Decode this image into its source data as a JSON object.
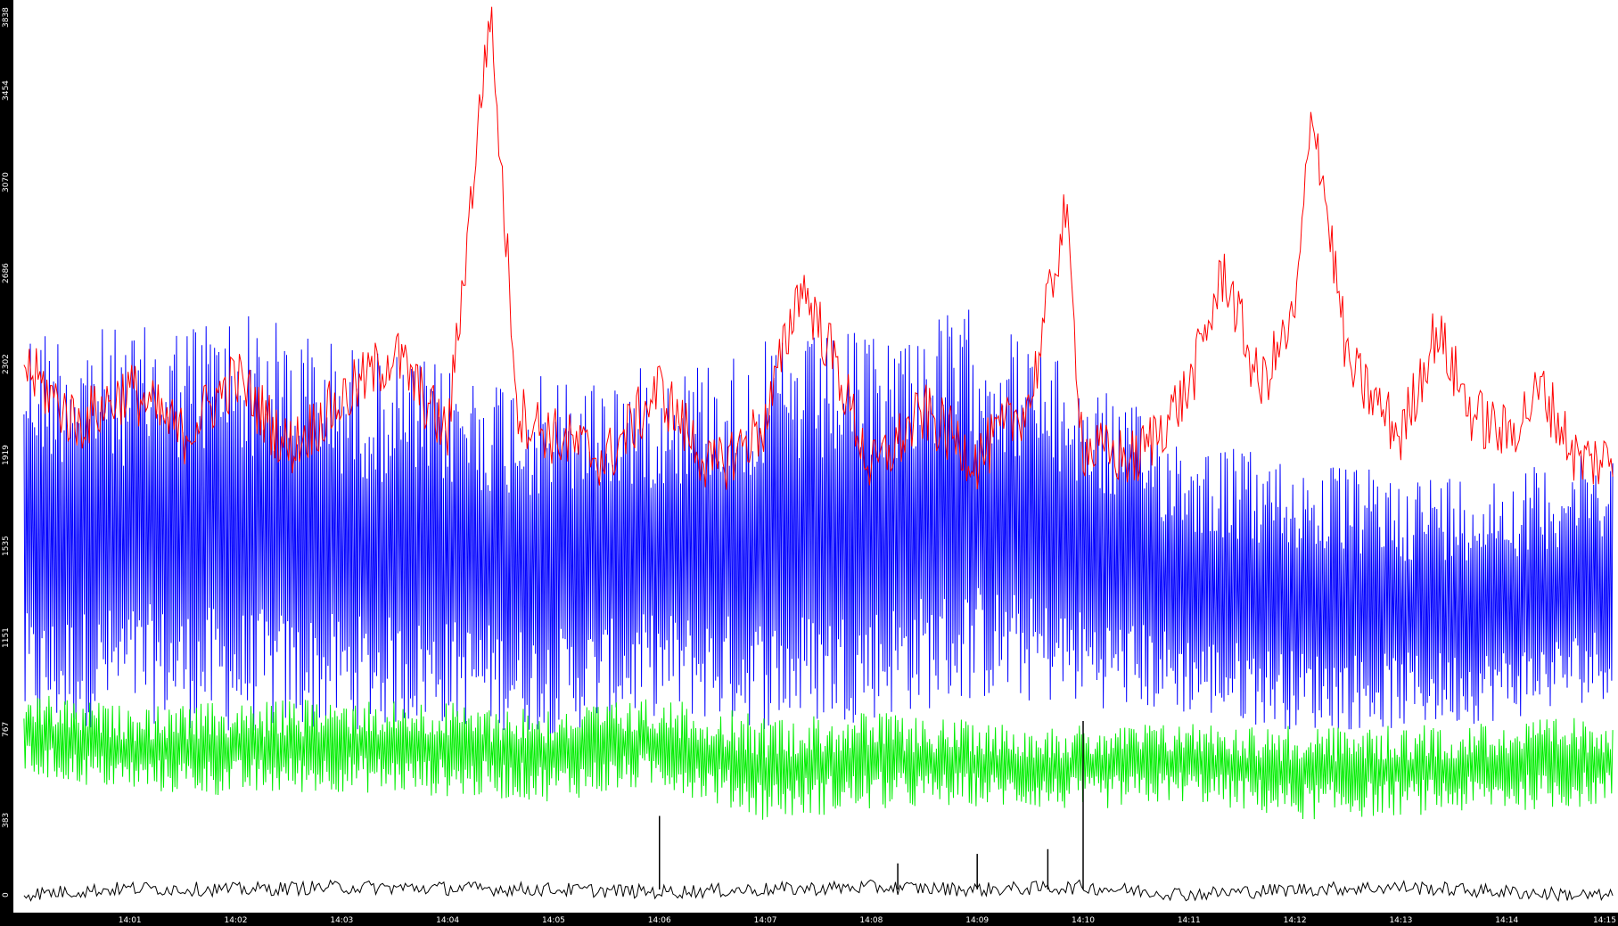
{
  "chart_data": {
    "type": "line",
    "title": "",
    "xlabel": "",
    "ylabel": "",
    "ylim": [
      0,
      3838
    ],
    "grid": false,
    "y_ticks": [
      "0",
      "383",
      "767",
      "1151",
      "1535",
      "1919",
      "2302",
      "2686",
      "3070",
      "3454",
      "3838"
    ],
    "x_ticks": [
      "14:01",
      "14:02",
      "14:03",
      "14:04",
      "14:05",
      "14:06",
      "14:07",
      "14:08",
      "14:09",
      "14:10",
      "14:11",
      "14:12",
      "14:13",
      "14:14",
      "14:15"
    ],
    "x_range_minutes": [
      14.0,
      15.0
    ],
    "series": [
      {
        "color": "#ff0000",
        "x": [
          "14:00",
          "14:00:30",
          "14:01",
          "14:01:30",
          "14:02",
          "14:02:30",
          "14:03",
          "14:03:30",
          "14:04",
          "14:04:24",
          "14:04:40",
          "14:05",
          "14:05:30",
          "14:06",
          "14:06:30",
          "14:07",
          "14:07:20",
          "14:07:40",
          "14:08",
          "14:08:30",
          "14:09",
          "14:09:30",
          "14:09:50",
          "14:10",
          "14:10:30",
          "14:11",
          "14:11:20",
          "14:11:40",
          "14:12",
          "14:12:10",
          "14:12:30",
          "14:13",
          "14:13:20",
          "14:13:40",
          "14:14",
          "14:14:20",
          "14:14:40",
          "14:15"
        ],
        "values": [
          2300,
          2050,
          2200,
          2000,
          2250,
          1950,
          2150,
          2350,
          2000,
          3800,
          2100,
          2000,
          1900,
          2200,
          1850,
          2050,
          2650,
          2300,
          1850,
          2100,
          1900,
          2150,
          2950,
          1950,
          1900,
          2200,
          2700,
          2200,
          2500,
          3400,
          2300,
          2000,
          2450,
          2100,
          2000,
          2200,
          1900,
          1900
        ]
      },
      {
        "color": "#0000ff",
        "x": [
          "14:00",
          "14:01",
          "14:02",
          "14:03",
          "14:04",
          "14:05",
          "14:06",
          "14:07",
          "14:08",
          "14:09",
          "14:10",
          "14:11",
          "14:12",
          "14:13",
          "14:14",
          "14:15"
        ],
        "max_values": [
          2500,
          2450,
          2550,
          2400,
          2300,
          2250,
          2300,
          2400,
          2450,
          2550,
          2250,
          2000,
          1900,
          1850,
          1850,
          1950
        ],
        "min_values": [
          720,
          800,
          740,
          760,
          780,
          740,
          820,
          760,
          800,
          880,
          860,
          820,
          760,
          760,
          800,
          900
        ]
      },
      {
        "color": "#00ee00",
        "x": [
          "14:00",
          "14:01",
          "14:02",
          "14:03",
          "14:04",
          "14:05",
          "14:06",
          "14:07",
          "14:08",
          "14:09",
          "14:10",
          "14:11",
          "14:12",
          "14:13",
          "14:14",
          "14:15"
        ],
        "max_values": [
          920,
          860,
          880,
          900,
          880,
          860,
          900,
          820,
          840,
          800,
          780,
          800,
          780,
          780,
          800,
          820
        ],
        "min_values": [
          560,
          500,
          480,
          500,
          480,
          460,
          520,
          380,
          420,
          440,
          420,
          460,
          380,
          400,
          420,
          440
        ]
      },
      {
        "color": "#000000",
        "x": [
          "14:00",
          "14:01",
          "14:02",
          "14:03",
          "14:04",
          "14:05",
          "14:06",
          "14:07",
          "14:08",
          "14:09",
          "14:10",
          "14:11",
          "14:12",
          "14:13",
          "14:14",
          "14:15"
        ],
        "values": [
          70,
          95,
          90,
          100,
          95,
          90,
          80,
          90,
          100,
          90,
          100,
          70,
          90,
          100,
          80,
          60
        ],
        "spikes": [
          [
            "14:06",
            400
          ],
          [
            "14:09",
            240
          ],
          [
            "14:09:40",
            260
          ],
          [
            "14:10",
            800
          ],
          [
            "14:08:15",
            200
          ]
        ]
      }
    ]
  }
}
